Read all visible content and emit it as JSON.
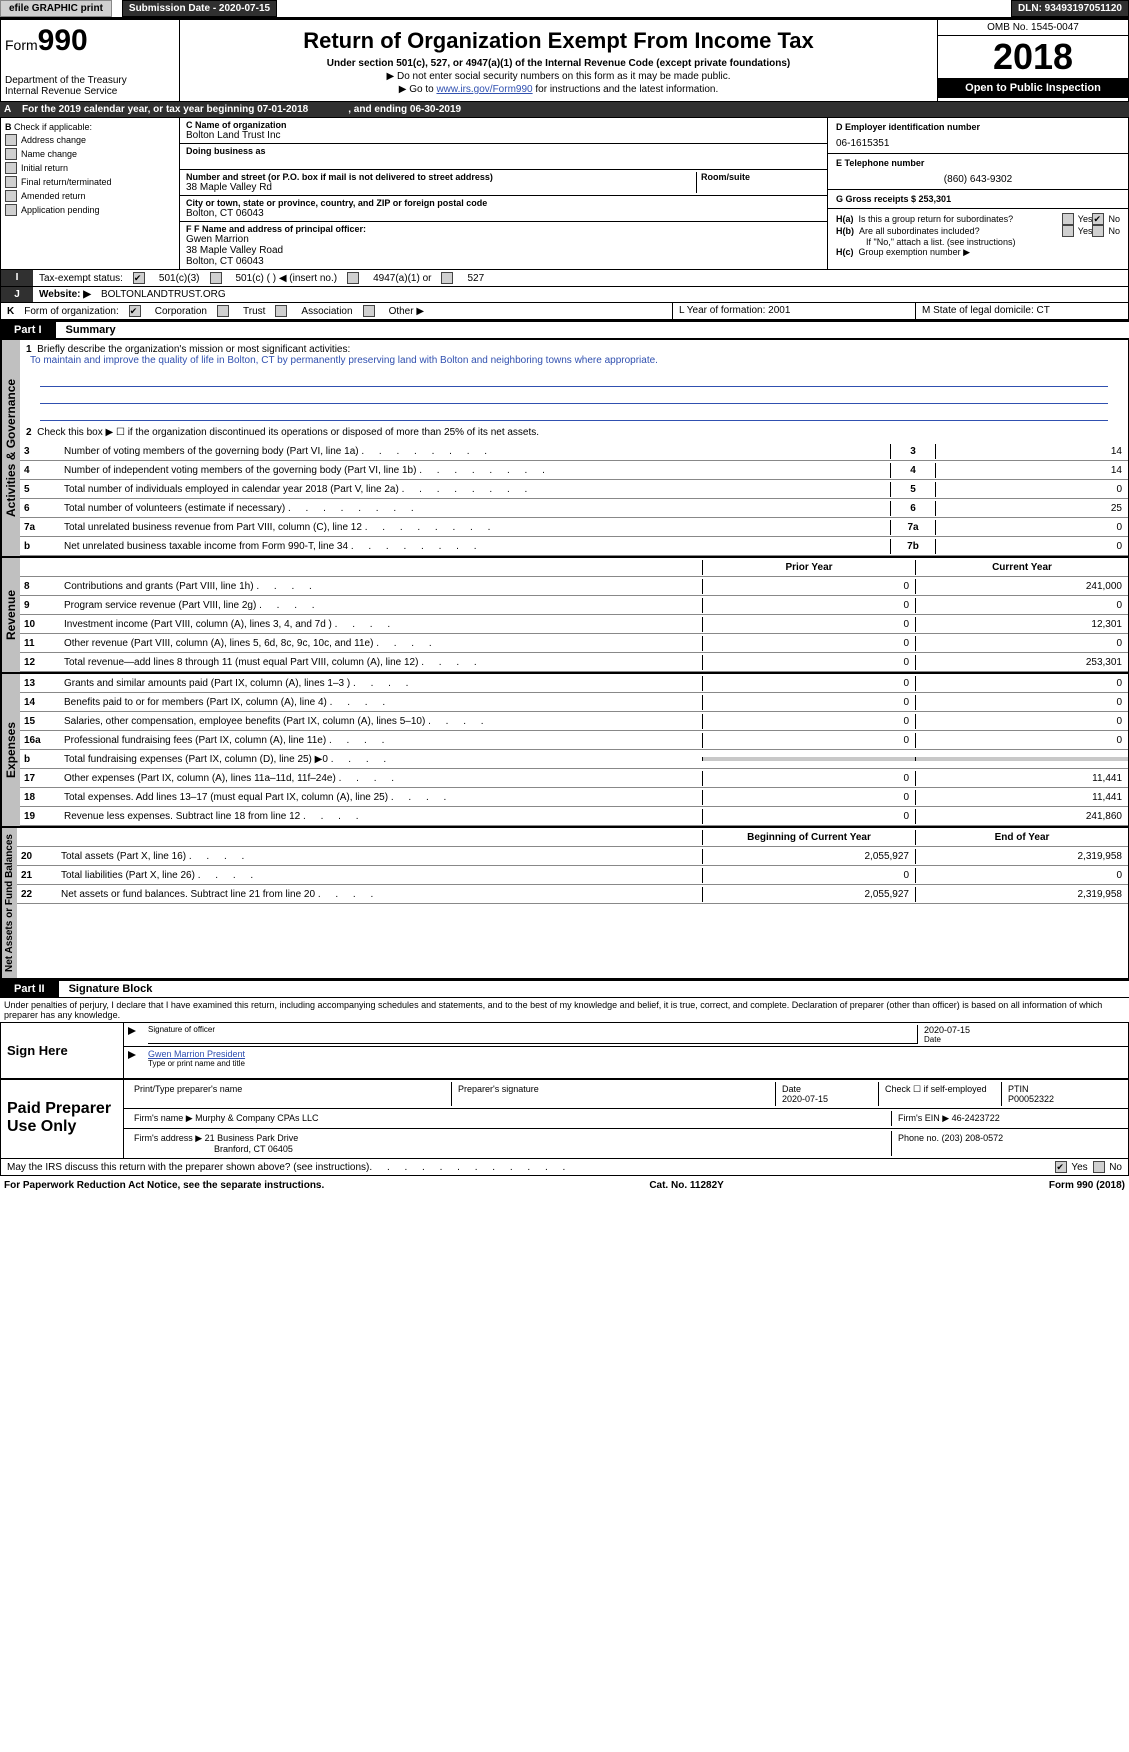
{
  "topbar": {
    "efile": "efile GRAPHIC print",
    "submission_label": "Submission Date - 2020-07-15",
    "dln_label": "DLN: 93493197051120"
  },
  "header": {
    "form_prefix": "Form",
    "form_number": "990",
    "title": "Return of Organization Exempt From Income Tax",
    "subtitle": "Under section 501(c), 527, or 4947(a)(1) of the Internal Revenue Code (except private foundations)",
    "instr1": "▶ Do not enter social security numbers on this form as it may be made public.",
    "instr2_prefix": "▶ Go to ",
    "instr2_link": "www.irs.gov/Form990",
    "instr2_suffix": " for instructions and the latest information.",
    "dept1": "Department of the Treasury",
    "dept2": "Internal Revenue Service",
    "omb": "OMB No. 1545-0047",
    "year": "2018",
    "open_public": "Open to Public Inspection"
  },
  "row_a": {
    "text": "For the 2019 calendar year, or tax year beginning 07-01-2018",
    "ending": ", and ending 06-30-2019"
  },
  "section_b": {
    "check_label": "Check if applicable:",
    "checks": [
      "Address change",
      "Name change",
      "Initial return",
      "Final return/terminated",
      "Amended return",
      "Application pending"
    ],
    "c_label": "C Name of organization",
    "org_name": "Bolton Land Trust Inc",
    "dba_label": "Doing business as",
    "addr_label": "Number and street (or P.O. box if mail is not delivered to street address)",
    "addr": "38 Maple Valley Rd",
    "room_label": "Room/suite",
    "city_label": "City or town, state or province, country, and ZIP or foreign postal code",
    "city": "Bolton, CT  06043",
    "f_label": "F Name and address of principal officer:",
    "officer_name": "Gwen Marrion",
    "officer_addr1": "38 Maple Valley Road",
    "officer_addr2": "Bolton, CT  06043",
    "d_label": "D Employer identification number",
    "ein": "06-1615351",
    "e_label": "E Telephone number",
    "phone": "(860) 643-9302",
    "g_label": "G Gross receipts $ 253,301",
    "ha": "Is this a group return for subordinates?",
    "hb": "Are all subordinates included?",
    "hb_note": "If \"No,\" attach a list. (see instructions)",
    "hc": "Group exemption number ▶",
    "yes": "Yes",
    "no": "No"
  },
  "rows_ijk": {
    "i_label": "Tax-exempt status:",
    "i_opts": [
      "501(c)(3)",
      "501(c) (  ) ◀ (insert no.)",
      "4947(a)(1) or",
      "527"
    ],
    "j_label": "Website: ▶",
    "website": "BOLTONLANDTRUST.ORG",
    "k_label": "Form of organization:",
    "k_opts": [
      "Corporation",
      "Trust",
      "Association",
      "Other ▶"
    ],
    "l_label": "L Year of formation: 2001",
    "m_label": "M State of legal domicile: CT"
  },
  "part1": {
    "tab": "Part I",
    "title": "Summary",
    "q1_label": "Briefly describe the organization's mission or most significant activities:",
    "q1_text": "To maintain and improve the quality of life in Bolton, CT by permanently preserving land with Bolton and neighboring towns where appropriate.",
    "q2": "Check this box ▶ ☐ if the organization discontinued its operations or disposed of more than 25% of its net assets.",
    "sections": {
      "governance": "Activities & Governance",
      "revenue": "Revenue",
      "expenses": "Expenses",
      "netassets": "Net Assets or Fund Balances"
    },
    "lines": [
      {
        "n": "3",
        "label": "Number of voting members of the governing body (Part VI, line 1a)",
        "box": "3",
        "v": "14"
      },
      {
        "n": "4",
        "label": "Number of independent voting members of the governing body (Part VI, line 1b)",
        "box": "4",
        "v": "14"
      },
      {
        "n": "5",
        "label": "Total number of individuals employed in calendar year 2018 (Part V, line 2a)",
        "box": "5",
        "v": "0"
      },
      {
        "n": "6",
        "label": "Total number of volunteers (estimate if necessary)",
        "box": "6",
        "v": "25"
      },
      {
        "n": "7a",
        "label": "Total unrelated business revenue from Part VIII, column (C), line 12",
        "box": "7a",
        "v": "0"
      },
      {
        "n": "b",
        "label": "Net unrelated business taxable income from Form 990-T, line 34",
        "box": "7b",
        "v": "0"
      }
    ],
    "col_headers": {
      "prior": "Prior Year",
      "current": "Current Year"
    },
    "rev_lines": [
      {
        "n": "8",
        "label": "Contributions and grants (Part VIII, line 1h)",
        "p": "0",
        "c": "241,000"
      },
      {
        "n": "9",
        "label": "Program service revenue (Part VIII, line 2g)",
        "p": "0",
        "c": "0"
      },
      {
        "n": "10",
        "label": "Investment income (Part VIII, column (A), lines 3, 4, and 7d )",
        "p": "0",
        "c": "12,301"
      },
      {
        "n": "11",
        "label": "Other revenue (Part VIII, column (A), lines 5, 6d, 8c, 9c, 10c, and 11e)",
        "p": "0",
        "c": "0"
      },
      {
        "n": "12",
        "label": "Total revenue—add lines 8 through 11 (must equal Part VIII, column (A), line 12)",
        "p": "0",
        "c": "253,301"
      }
    ],
    "exp_lines": [
      {
        "n": "13",
        "label": "Grants and similar amounts paid (Part IX, column (A), lines 1–3 )",
        "p": "0",
        "c": "0"
      },
      {
        "n": "14",
        "label": "Benefits paid to or for members (Part IX, column (A), line 4)",
        "p": "0",
        "c": "0"
      },
      {
        "n": "15",
        "label": "Salaries, other compensation, employee benefits (Part IX, column (A), lines 5–10)",
        "p": "0",
        "c": "0"
      },
      {
        "n": "16a",
        "label": "Professional fundraising fees (Part IX, column (A), line 11e)",
        "p": "0",
        "c": "0"
      },
      {
        "n": "b",
        "label": "Total fundraising expenses (Part IX, column (D), line 25) ▶0",
        "p": "",
        "c": "",
        "shaded": true
      },
      {
        "n": "17",
        "label": "Other expenses (Part IX, column (A), lines 11a–11d, 11f–24e)",
        "p": "0",
        "c": "11,441"
      },
      {
        "n": "18",
        "label": "Total expenses. Add lines 13–17 (must equal Part IX, column (A), line 25)",
        "p": "0",
        "c": "11,441"
      },
      {
        "n": "19",
        "label": "Revenue less expenses. Subtract line 18 from line 12",
        "p": "0",
        "c": "241,860"
      }
    ],
    "net_headers": {
      "begin": "Beginning of Current Year",
      "end": "End of Year"
    },
    "net_lines": [
      {
        "n": "20",
        "label": "Total assets (Part X, line 16)",
        "p": "2,055,927",
        "c": "2,319,958"
      },
      {
        "n": "21",
        "label": "Total liabilities (Part X, line 26)",
        "p": "0",
        "c": "0"
      },
      {
        "n": "22",
        "label": "Net assets or fund balances. Subtract line 21 from line 20",
        "p": "2,055,927",
        "c": "2,319,958"
      }
    ]
  },
  "part2": {
    "tab": "Part II",
    "title": "Signature Block",
    "perjury": "Under penalties of perjury, I declare that I have examined this return, including accompanying schedules and statements, and to the best of my knowledge and belief, it is true, correct, and complete. Declaration of preparer (other than officer) is based on all information of which preparer has any knowledge.",
    "sign_here": "Sign Here",
    "sig_officer": "Signature of officer",
    "sig_date": "2020-07-15",
    "date_label": "Date",
    "officer_printed": "Gwen Marrion President",
    "type_name": "Type or print name and title",
    "paid": "Paid Preparer Use Only",
    "prep_name_label": "Print/Type preparer's name",
    "prep_sig_label": "Preparer's signature",
    "prep_date_label": "Date",
    "prep_date": "2020-07-15",
    "check_self": "Check ☐ if self-employed",
    "ptin_label": "PTIN",
    "ptin": "P00052322",
    "firm_name_label": "Firm's name ▶",
    "firm_name": "Murphy & Company CPAs LLC",
    "firm_ein_label": "Firm's EIN ▶",
    "firm_ein": "46-2423722",
    "firm_addr_label": "Firm's address ▶",
    "firm_addr1": "21 Business Park Drive",
    "firm_addr2": "Branford, CT  06405",
    "firm_phone_label": "Phone no.",
    "firm_phone": "(203) 208-0572",
    "discuss": "May the IRS discuss this return with the preparer shown above? (see instructions)",
    "discuss_yes": "Yes",
    "discuss_no": "No"
  },
  "footer": {
    "left": "For Paperwork Reduction Act Notice, see the separate instructions.",
    "mid": "Cat. No. 11282Y",
    "right": "Form 990 (2018)"
  },
  "colors": {
    "dark": "#303030",
    "gray": "#c0c0c0",
    "link": "#3050b0"
  }
}
